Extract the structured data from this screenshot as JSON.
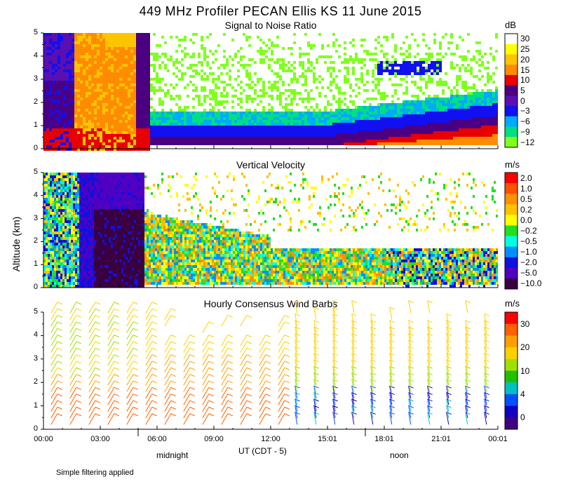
{
  "title": "449 MHz Profiler PECAN Ellis KS 11 June 2015",
  "y_axis_label": "Altitude (km)",
  "x_axis_label": "UT  (CDT - 5)",
  "footnote": "Simple filtering applied",
  "time_markers": [
    {
      "label": "midnight",
      "hour": 5
    },
    {
      "label": "noon",
      "hour": 17
    }
  ],
  "chart_data": [
    {
      "type": "heatmap",
      "title": "Signal to Noise Ratio",
      "xlabel": "UT  (CDT - 5)",
      "ylabel": "Altitude (km)",
      "xlim": [
        0,
        24
      ],
      "ylim": [
        0,
        5
      ],
      "y_ticks": [
        "0",
        "1",
        "2",
        "3",
        "4",
        "5"
      ],
      "x_ticks": [
        "00:00",
        "03:00",
        "06:00",
        "09:00",
        "12:00",
        "15:01",
        "18:01",
        "21:01",
        "00:01"
      ],
      "colorbar_unit": "dB",
      "colorbar_labels": [
        "30",
        "25",
        "20",
        "15",
        "10",
        "5",
        "0",
        "−3",
        "−6",
        "−9",
        "−12"
      ],
      "colorbar_colors": [
        "#ffffff",
        "#ffff00",
        "#ffc400",
        "#ff8c00",
        "#e80000",
        "#4b0082",
        "#5a10b0",
        "#1010f0",
        "#00aaff",
        "#00e080",
        "#80ff20"
      ]
    },
    {
      "type": "heatmap",
      "title": "Vertical Velocity",
      "xlabel": "UT  (CDT - 5)",
      "ylabel": "Altitude (km)",
      "xlim": [
        0,
        24
      ],
      "ylim": [
        0,
        5
      ],
      "y_ticks": [
        "0",
        "1",
        "2",
        "3",
        "4",
        "5"
      ],
      "colorbar_unit": "m/s",
      "colorbar_labels": [
        "2.0",
        "1.0",
        "0.5",
        "0.2",
        "0.0",
        "−0.2",
        "−0.5",
        "−1.0",
        "−2.0",
        "−5.0",
        "−10.0"
      ],
      "colorbar_colors": [
        "#ff0000",
        "#ff5000",
        "#ff9000",
        "#ffc000",
        "#ffff00",
        "#20e020",
        "#00ffe0",
        "#0090ff",
        "#1010e0",
        "#5000c0",
        "#3a0040"
      ]
    },
    {
      "type": "scatter",
      "title": "Hourly Consensus Wind Barbs",
      "xlabel": "UT  (CDT - 5)",
      "ylabel": "Altitude (km)",
      "xlim": [
        0,
        24
      ],
      "ylim": [
        0,
        5
      ],
      "y_ticks": [
        "0",
        "1",
        "2",
        "3",
        "4",
        "5"
      ],
      "colorbar_unit": "m/s",
      "colorbar_labels": [
        "30",
        "20",
        "10",
        "4",
        "0"
      ],
      "colorbar_values": [
        30,
        20,
        10,
        4,
        0
      ],
      "colorbar_colors": [
        "#ff0000",
        "#ff6000",
        "#ffa000",
        "#ffd000",
        "#a0e000",
        "#20c000",
        "#00c0c0",
        "#0050ff",
        "#1000c0",
        "#400080"
      ]
    }
  ],
  "colors": {
    "axis": "#000000",
    "background": "#ffffff"
  }
}
